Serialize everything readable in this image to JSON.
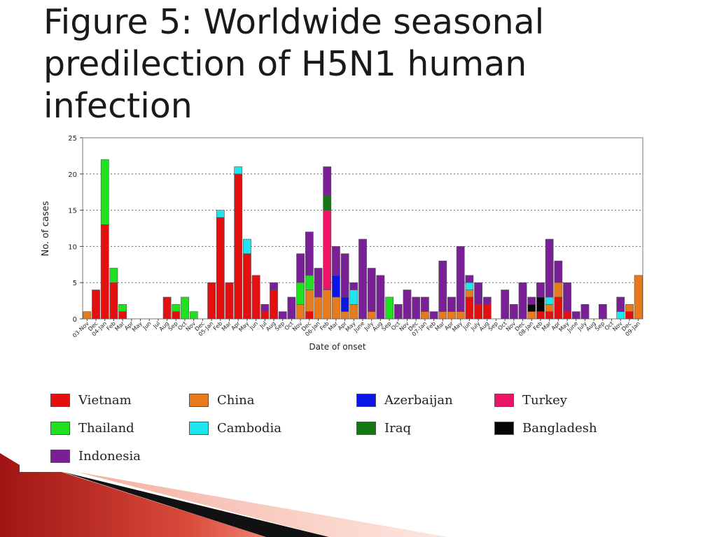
{
  "slide": {
    "title": "Figure 5: Worldwide seasonal predilection of H5N1 human infection"
  },
  "colors": {
    "Vietnam": "#e41010",
    "China": "#e87a1e",
    "Azerbaijan": "#0b16e6",
    "Turkey": "#ec1466",
    "Thailand": "#20e020",
    "Cambodia": "#1ee6ee",
    "Iraq": "#147814",
    "Bangladesh": "#050505",
    "Indonesia": "#7a2096"
  },
  "legend_order": [
    "Vietnam",
    "China",
    "Azerbaijan",
    "Turkey",
    "Thailand",
    "Cambodia",
    "Iraq",
    "Bangladesh",
    "Indonesia"
  ],
  "chart_data": {
    "type": "bar",
    "stacked": true,
    "xlabel": "Date of onset",
    "ylabel": "No. of cases",
    "ylim": [
      0,
      25
    ],
    "yticks": [
      0,
      5,
      10,
      15,
      20,
      25
    ],
    "grid": true,
    "legend_placement": "bottom",
    "categories": [
      "03-Nov",
      "Dec",
      "04-Jan",
      "Feb",
      "Mar",
      "Apr",
      "May",
      "Jun",
      "Jul",
      "Aug",
      "Sep",
      "Oct",
      "Nov",
      "Dec",
      "05-Jan",
      "Feb",
      "Mar",
      "Apr",
      "May",
      "Jun",
      "Jul",
      "Aug",
      "Sep",
      "Oct",
      "Nov",
      "Dec",
      "06-Jan",
      "Feb",
      "Mar",
      "Apr",
      "May",
      "June",
      "July",
      "Aug",
      "Sep",
      "Oct",
      "Nov",
      "Dec",
      "07-Jan",
      "Feb",
      "Mar",
      "Apr",
      "May",
      "Jun",
      "July",
      "Aug",
      "Sep",
      "Oct",
      "Nov",
      "Dec",
      "08-Jan",
      "Feb",
      "Mar",
      "Apr",
      "May",
      "June",
      "July",
      "Aug",
      "Sep",
      "Oct",
      "Nov",
      "Dec",
      "09-Jan"
    ],
    "series": [
      {
        "name": "Vietnam",
        "values": [
          0,
          4,
          13,
          5,
          1,
          0,
          0,
          0,
          0,
          3,
          1,
          0,
          0,
          0,
          5,
          14,
          5,
          20,
          9,
          6,
          1,
          4,
          0,
          0,
          0,
          1,
          0,
          0,
          0,
          0,
          0,
          0,
          0,
          0,
          0,
          0,
          0,
          0,
          0,
          0,
          0,
          0,
          0,
          3,
          2,
          2,
          0,
          0,
          0,
          0,
          0,
          1,
          1,
          3,
          1,
          0,
          0,
          0,
          0,
          0,
          0,
          1,
          0
        ]
      },
      {
        "name": "China",
        "values": [
          1,
          0,
          0,
          0,
          0,
          0,
          0,
          0,
          0,
          0,
          0,
          0,
          0,
          0,
          0,
          0,
          0,
          0,
          0,
          0,
          0,
          0,
          0,
          0,
          2,
          3,
          3,
          4,
          3,
          1,
          2,
          0,
          1,
          0,
          0,
          0,
          0,
          0,
          1,
          0,
          1,
          1,
          1,
          1,
          0,
          0,
          0,
          0,
          0,
          0,
          1,
          0,
          1,
          2,
          0,
          0,
          0,
          0,
          0,
          0,
          0,
          1,
          6
        ]
      },
      {
        "name": "Azerbaijan",
        "values": [
          0,
          0,
          0,
          0,
          0,
          0,
          0,
          0,
          0,
          0,
          0,
          0,
          0,
          0,
          0,
          0,
          0,
          0,
          0,
          0,
          0,
          0,
          0,
          0,
          0,
          0,
          0,
          0,
          3,
          2,
          0,
          0,
          0,
          0,
          0,
          0,
          0,
          0,
          0,
          0,
          0,
          0,
          0,
          0,
          0,
          0,
          0,
          0,
          0,
          0,
          0,
          0,
          0,
          0,
          0,
          0,
          0,
          0,
          0,
          0,
          0,
          0,
          0
        ]
      },
      {
        "name": "Turkey",
        "values": [
          0,
          0,
          0,
          0,
          0,
          0,
          0,
          0,
          0,
          0,
          0,
          0,
          0,
          0,
          0,
          0,
          0,
          0,
          0,
          0,
          0,
          0,
          0,
          0,
          0,
          0,
          0,
          11,
          0,
          0,
          0,
          0,
          0,
          0,
          0,
          0,
          0,
          0,
          0,
          0,
          0,
          0,
          0,
          0,
          0,
          0,
          0,
          0,
          0,
          0,
          0,
          0,
          0,
          0,
          0,
          0,
          0,
          0,
          0,
          0,
          0,
          0,
          0
        ]
      },
      {
        "name": "Thailand",
        "values": [
          0,
          0,
          9,
          2,
          1,
          0,
          0,
          0,
          0,
          0,
          1,
          3,
          1,
          0,
          0,
          0,
          0,
          0,
          0,
          0,
          0,
          0,
          0,
          0,
          3,
          2,
          0,
          0,
          0,
          0,
          0,
          0,
          0,
          0,
          3,
          0,
          0,
          0,
          0,
          0,
          0,
          0,
          0,
          0,
          0,
          0,
          0,
          0,
          0,
          0,
          0,
          0,
          0,
          0,
          0,
          0,
          0,
          0,
          0,
          0,
          0,
          0,
          0
        ]
      },
      {
        "name": "Cambodia",
        "values": [
          0,
          0,
          0,
          0,
          0,
          0,
          0,
          0,
          0,
          0,
          0,
          0,
          0,
          0,
          0,
          1,
          0,
          1,
          2,
          0,
          0,
          0,
          0,
          0,
          0,
          0,
          0,
          0,
          0,
          0,
          2,
          0,
          0,
          0,
          0,
          0,
          0,
          0,
          0,
          0,
          0,
          0,
          0,
          1,
          0,
          0,
          0,
          0,
          0,
          0,
          0,
          0,
          1,
          0,
          0,
          0,
          0,
          0,
          0,
          0,
          1,
          0,
          0
        ]
      },
      {
        "name": "Iraq",
        "values": [
          0,
          0,
          0,
          0,
          0,
          0,
          0,
          0,
          0,
          0,
          0,
          0,
          0,
          0,
          0,
          0,
          0,
          0,
          0,
          0,
          0,
          0,
          0,
          0,
          0,
          0,
          0,
          2,
          0,
          0,
          0,
          0,
          0,
          0,
          0,
          0,
          0,
          0,
          0,
          0,
          0,
          0,
          0,
          0,
          0,
          0,
          0,
          0,
          0,
          0,
          0,
          0,
          0,
          0,
          0,
          0,
          0,
          0,
          0,
          0,
          0,
          0,
          0
        ]
      },
      {
        "name": "Bangladesh",
        "values": [
          0,
          0,
          0,
          0,
          0,
          0,
          0,
          0,
          0,
          0,
          0,
          0,
          0,
          0,
          0,
          0,
          0,
          0,
          0,
          0,
          0,
          0,
          0,
          0,
          0,
          0,
          0,
          0,
          0,
          0,
          0,
          0,
          0,
          0,
          0,
          0,
          0,
          0,
          0,
          0,
          0,
          0,
          0,
          0,
          0,
          0,
          0,
          0,
          0,
          0,
          1,
          2,
          0,
          0,
          0,
          0,
          0,
          0,
          0,
          0,
          0,
          0,
          0
        ]
      },
      {
        "name": "Indonesia",
        "values": [
          0,
          0,
          0,
          0,
          0,
          0,
          0,
          0,
          0,
          0,
          0,
          0,
          0,
          0,
          0,
          0,
          0,
          0,
          0,
          0,
          1,
          1,
          1,
          3,
          4,
          6,
          4,
          4,
          4,
          6,
          1,
          11,
          6,
          6,
          0,
          2,
          4,
          3,
          2,
          1,
          7,
          2,
          9,
          1,
          3,
          1,
          0,
          4,
          2,
          5,
          1,
          2,
          8,
          3,
          4,
          1,
          2,
          0,
          2,
          0,
          2,
          0,
          0
        ]
      }
    ]
  }
}
